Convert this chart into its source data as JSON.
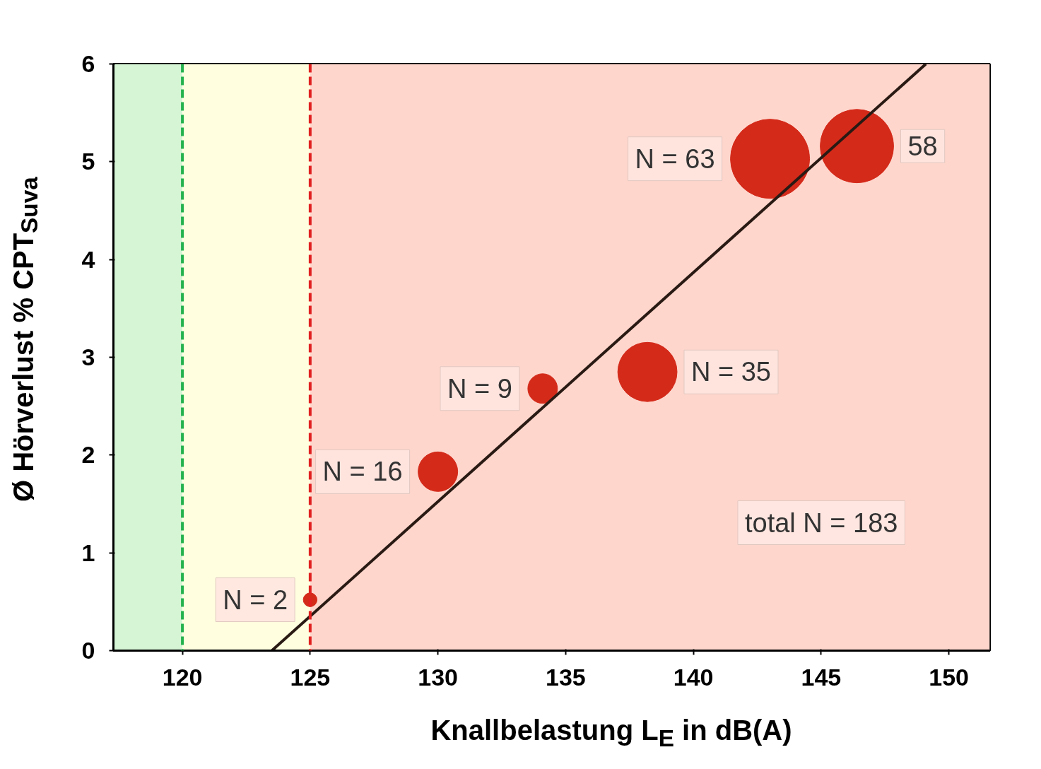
{
  "chart_data": {
    "type": "bubble",
    "xlabel": "Knallbelastung L$_{E}$ in dB(A)",
    "ylabel": "Ø Hörverlust % CPT$_{Suva}$",
    "x": [
      125,
      130,
      134.1,
      138.2,
      143.0,
      146.4
    ],
    "values": [
      0.52,
      1.83,
      2.68,
      2.85,
      5.03,
      5.16
    ],
    "sizes": [
      0.03,
      0.25,
      0.14,
      0.56,
      1,
      0.86
    ],
    "color": "#d42a1a",
    "series": [
      {
        "type": "line",
        "x": [
          123.5,
          149.1
        ],
        "values": [
          0,
          6
        ],
        "color": "#2a1a14"
      }
    ],
    "xlim": [
      117.3,
      151.6
    ],
    "ylim": [
      0,
      6
    ],
    "xticks": [
      120,
      125,
      130,
      135,
      140,
      145,
      150
    ],
    "yticks": [
      0,
      1,
      2,
      3,
      4,
      5,
      6
    ],
    "grid": false,
    "bands": [
      {
        "axis": "x",
        "from": 117.3,
        "to": 120,
        "color": "#d5f5d5"
      },
      {
        "axis": "x",
        "from": 120,
        "to": 125,
        "color": "#ffffe0"
      },
      {
        "axis": "x",
        "from": 125,
        "to": 151.6,
        "color": "#ffd6cc"
      }
    ],
    "ref_lines": [
      {
        "axis": "x",
        "value": 120,
        "color": "#22b14c",
        "line_style": "dashed"
      },
      {
        "axis": "x",
        "value": 125,
        "color": "#e02020",
        "line_style": "dashed"
      }
    ],
    "annotations": [
      {
        "text": "N = 2",
        "x": 125,
        "y": 0.52
      },
      {
        "text": "N = 16",
        "x": 130,
        "y": 1.83
      },
      {
        "text": "N = 9",
        "x": 134.1,
        "y": 2.68
      },
      {
        "text": "N = 35",
        "x": 138.2,
        "y": 2.85
      },
      {
        "text": "N = 63",
        "x": 143.0,
        "y": 5.03
      },
      {
        "text": "58",
        "x": 146.4,
        "y": 5.16
      },
      "total N = 183"
    ]
  }
}
